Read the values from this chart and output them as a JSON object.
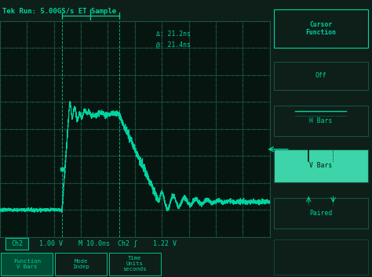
{
  "bg_color": "#0d1f18",
  "screen_bg": "#071510",
  "grid_color": "#1a5040",
  "trace_color": "#00d4a0",
  "text_color": "#00d4a0",
  "title_text": "Tek Run: 5.00GS/s ET Sample",
  "cursor_text1": "Δ: 21.2ns",
  "cursor_text2": "@: 21.4ns",
  "meas_text": "  1.00 V    M 10.0ns  Ch2 ʃ    1.22 V",
  "sidebar_labels": [
    "Cursor\nFunction",
    "Off",
    "H Bars",
    "V Bars",
    "Paired"
  ],
  "footer_labels": [
    "Function\nV Bars",
    "Mode\nIndep",
    "Time\nUnits\nseconds",
    "",
    ""
  ],
  "fig_w": 4.74,
  "fig_h": 3.54,
  "dpi": 100
}
